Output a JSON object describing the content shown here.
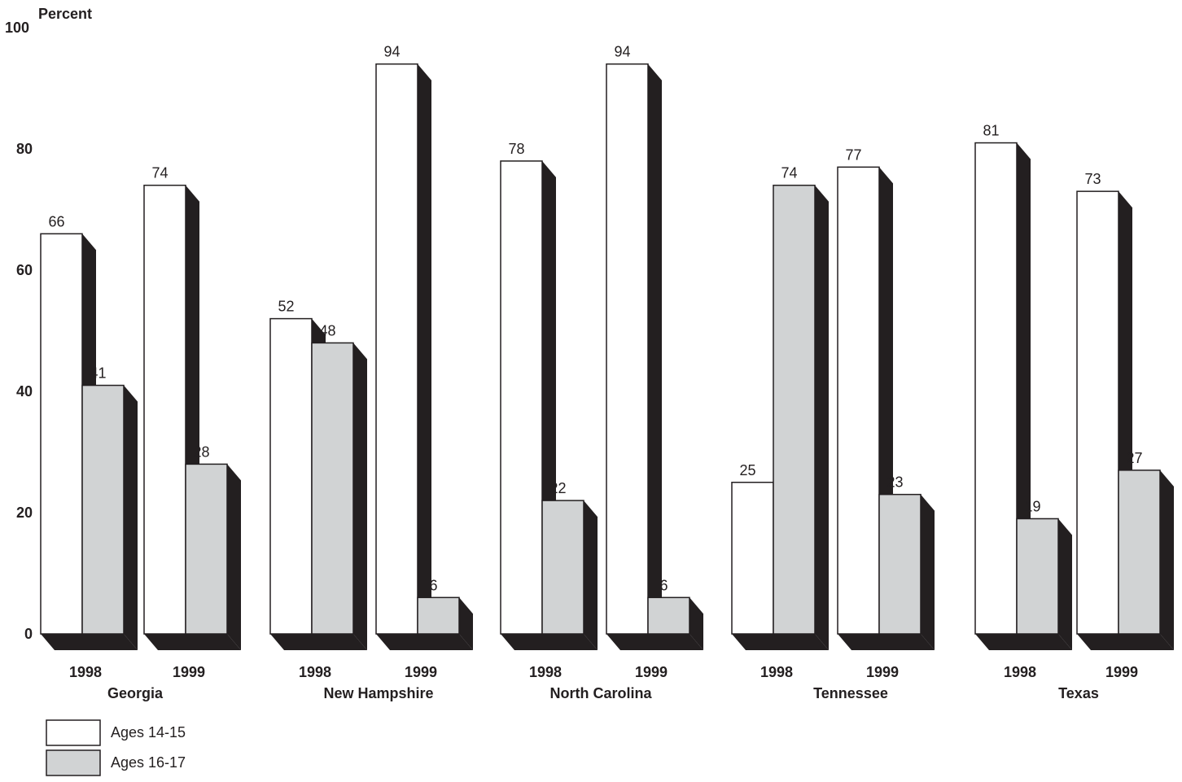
{
  "chart_data": {
    "type": "bar",
    "ylabel": "Percent",
    "ylim": [
      0,
      100
    ],
    "yticks": [
      0,
      20,
      40,
      60,
      80,
      100
    ],
    "grid": false,
    "legend_position": "bottom-left",
    "series": [
      {
        "name": "Ages 14-15",
        "color": "#ffffff"
      },
      {
        "name": "Ages 16-17",
        "color": "#d1d3d4"
      }
    ],
    "groups": [
      {
        "name": "Georgia",
        "bars": [
          {
            "year": "1998",
            "values": [
              66,
              41
            ]
          },
          {
            "year": "1999",
            "values": [
              74,
              28
            ]
          }
        ]
      },
      {
        "name": "New Hampshire",
        "bars": [
          {
            "year": "1998",
            "values": [
              52,
              48
            ]
          },
          {
            "year": "1999",
            "values": [
              94,
              6
            ]
          }
        ]
      },
      {
        "name": "North Carolina",
        "bars": [
          {
            "year": "1998",
            "values": [
              78,
              22
            ]
          },
          {
            "year": "1999",
            "values": [
              94,
              6
            ]
          }
        ]
      },
      {
        "name": "Tennessee",
        "bars": [
          {
            "year": "1998",
            "values": [
              25,
              74
            ]
          },
          {
            "year": "1999",
            "values": [
              77,
              23
            ]
          }
        ]
      },
      {
        "name": "Texas",
        "bars": [
          {
            "year": "1998",
            "values": [
              81,
              19
            ]
          },
          {
            "year": "1999",
            "values": [
              73,
              27
            ]
          }
        ]
      }
    ],
    "colors": {
      "ink": "#231f20",
      "shadow": "#231f20"
    }
  }
}
